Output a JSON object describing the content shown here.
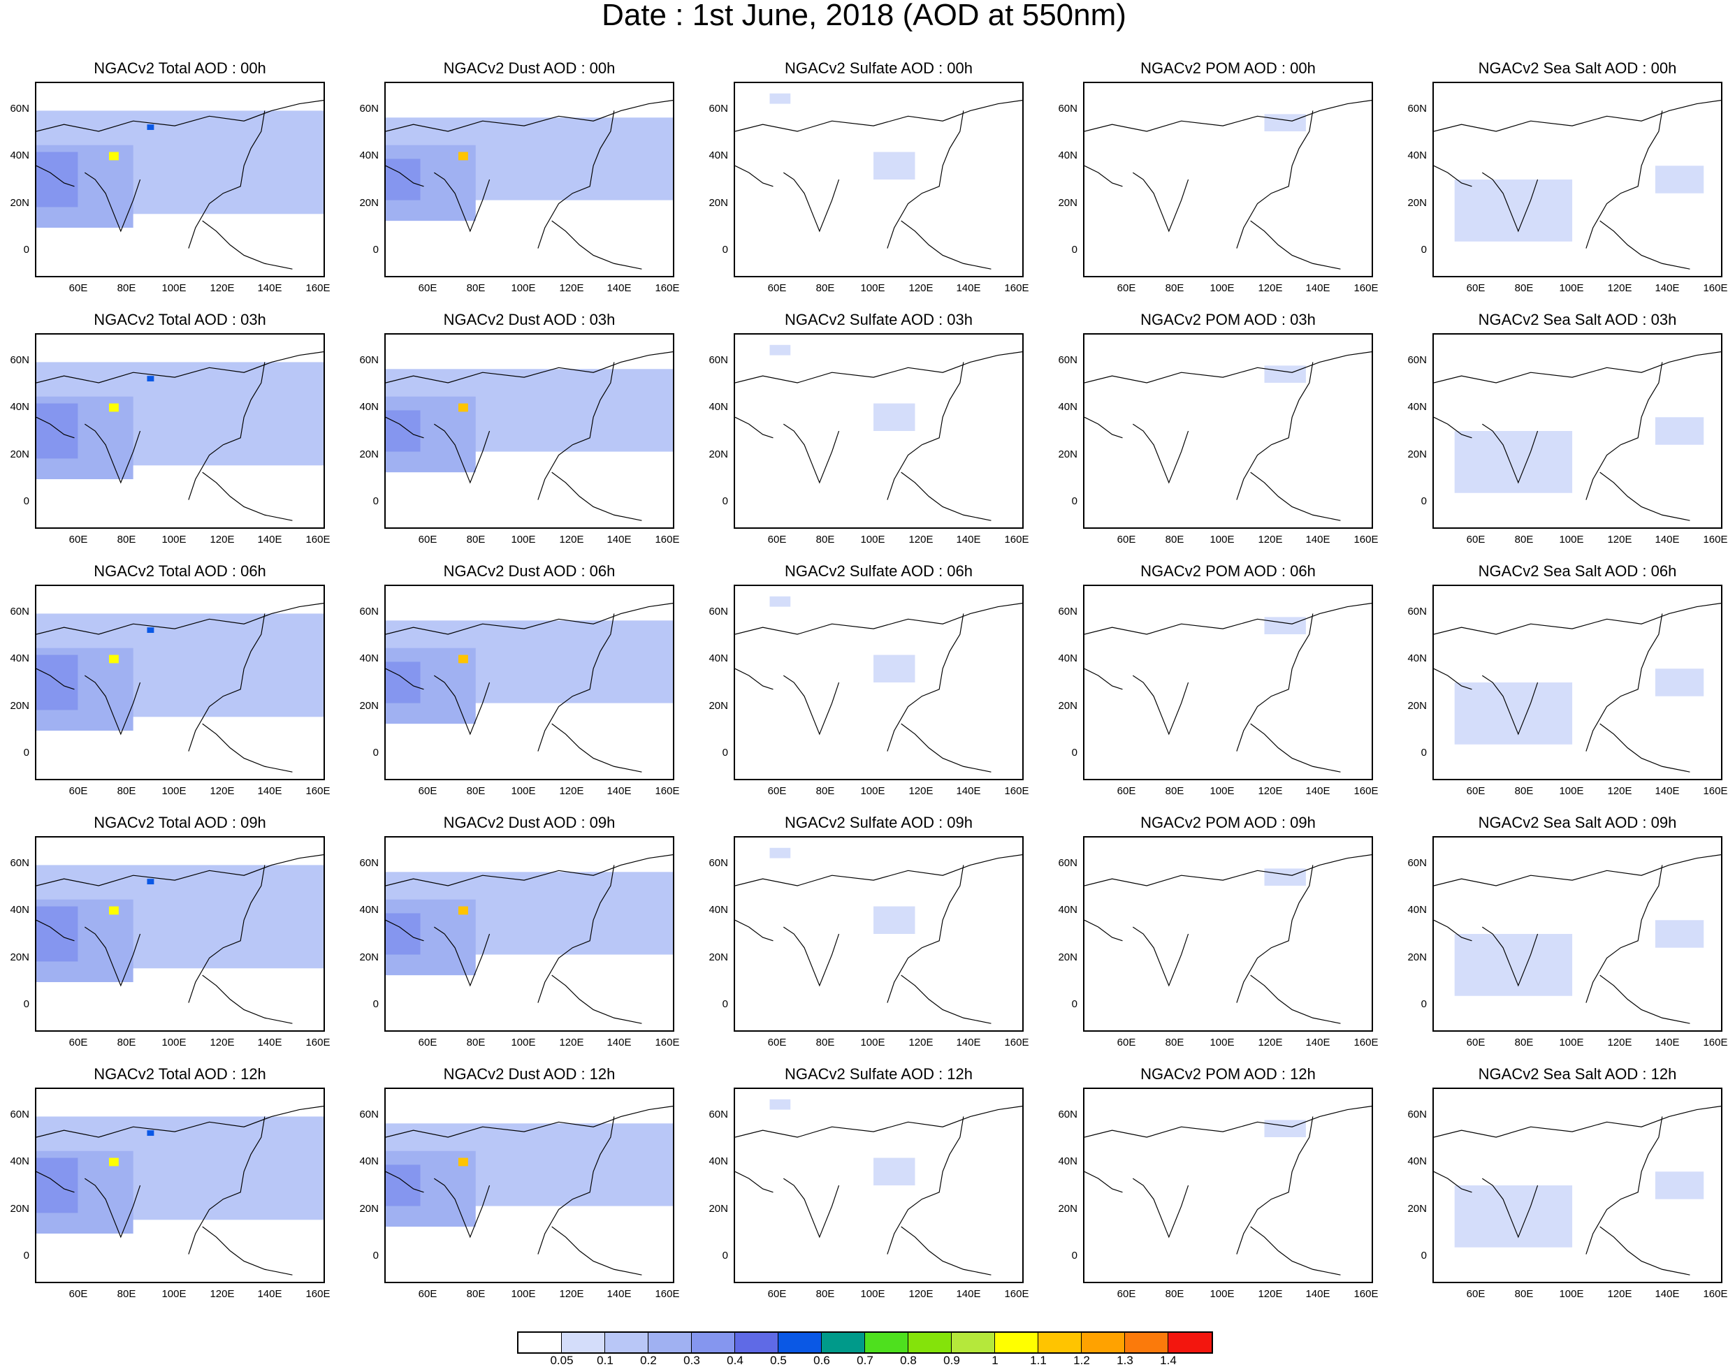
{
  "title": "Date : 1st June, 2018 (AOD at 550nm)",
  "lat_ticks": [
    "60N",
    "40N",
    "20N",
    "0"
  ],
  "lon_ticks": [
    "60E",
    "80E",
    "100E",
    "120E",
    "140E",
    "160E"
  ],
  "panel_titles": [
    [
      "NGACv2 Total AOD : 00h",
      "NGACv2 Dust AOD : 00h",
      "NGACv2 Sulfate AOD : 00h",
      "NGACv2 POM AOD : 00h",
      "NGACv2 Sea Salt AOD : 00h"
    ],
    [
      "NGACv2 Total AOD : 03h",
      "NGACv2 Dust AOD : 03h",
      "NGACv2 Sulfate AOD : 03h",
      "NGACv2 POM AOD : 03h",
      "NGACv2 Sea Salt AOD : 03h"
    ],
    [
      "NGACv2 Total AOD : 06h",
      "NGACv2 Dust AOD : 06h",
      "NGACv2 Sulfate AOD : 06h",
      "NGACv2 POM AOD : 06h",
      "NGACv2 Sea Salt AOD : 06h"
    ],
    [
      "NGACv2 Total AOD : 09h",
      "NGACv2 Dust AOD : 09h",
      "NGACv2 Sulfate AOD : 09h",
      "NGACv2 POM AOD : 09h",
      "NGACv2 Sea Salt  AOD : 09h"
    ],
    [
      "NGACv2 Total AOD  : 12h",
      "NGACv2 Dust AOD : 12h",
      "NGACv2 Sulfate AOD : 12h",
      "NGACv2 POM  AOD : 12h",
      "NGACv2 Sea Salt  AOD : 12h"
    ]
  ],
  "colorbar": {
    "labels": [
      "0.05",
      "0.1",
      "0.2",
      "0.3",
      "0.4",
      "0.5",
      "0.6",
      "0.7",
      "0.8",
      "0.9",
      "1",
      "1.1",
      "1.2",
      "1.3",
      "1.4"
    ],
    "colors": [
      "#ffffff",
      "#d4ddfa",
      "#b9c7f7",
      "#a0b1f2",
      "#8596ef",
      "#5f6ae6",
      "#0a58e5",
      "#009a8a",
      "#4ee01e",
      "#84e30a",
      "#b5e83b",
      "#ffff00",
      "#ffc400",
      "#ffa200",
      "#fb7a0b",
      "#f3160e"
    ]
  },
  "colors": {
    "land_outline": "#000000",
    "low_aod": "#d4ddfa",
    "mid_aod": "#a0b1f2",
    "high_aod": "#5f6ae6"
  }
}
